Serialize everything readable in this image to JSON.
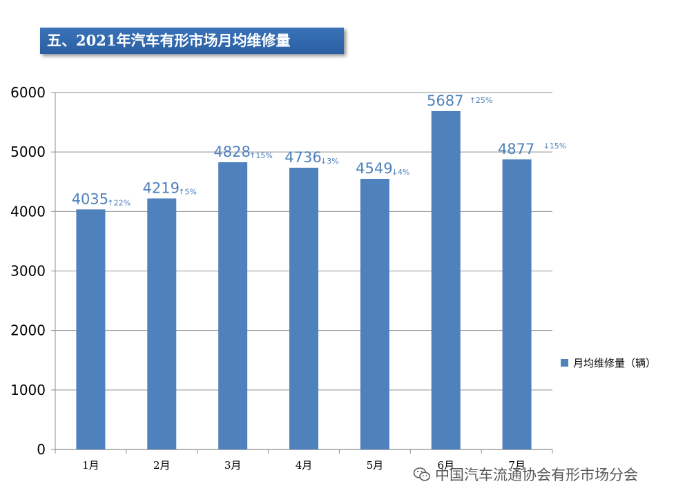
{
  "title": "五、2021年汽车有形市场月均维修量",
  "watermark": "中国汽车流通协会有形市场分会",
  "colors": {
    "bar": "#4f81bd",
    "label": "#4f81bd",
    "grid": "#8c8c8c",
    "banner": "#2f6aad"
  },
  "chart_data": {
    "type": "bar",
    "categories": [
      "1月",
      "2月",
      "3月",
      "4月",
      "5月",
      "6月",
      "7月"
    ],
    "series": [
      {
        "name": "月均维修量（辆）",
        "values": [
          4035,
          4219,
          4828,
          4736,
          4549,
          5687,
          4877
        ]
      }
    ],
    "data_labels": [
      "4035",
      "4219",
      "4828",
      "4736",
      "4549",
      "5687",
      "4877"
    ],
    "change_labels": [
      "↑22%",
      "↑5%",
      "↑15%",
      "↓3%",
      "↓4%",
      "↑25%",
      "↓15%"
    ],
    "ylim": [
      0,
      6000
    ],
    "yticks": [
      "0",
      "1000",
      "2000",
      "3000",
      "4000",
      "5000",
      "6000"
    ],
    "grid": true,
    "legend": "right"
  }
}
